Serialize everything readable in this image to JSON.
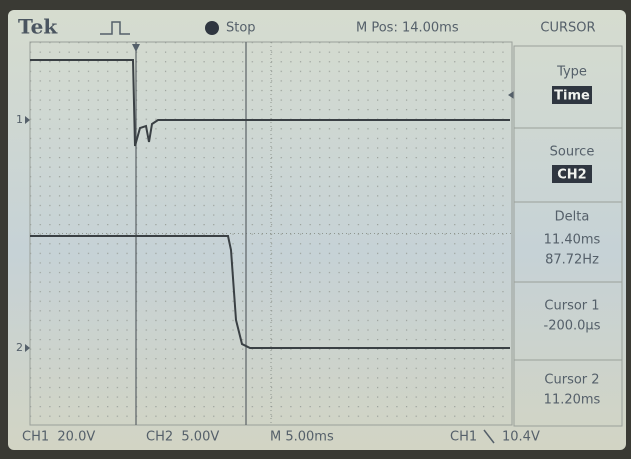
{
  "header": {
    "brand": "Tek",
    "run_state": "Stop",
    "position": "M Pos: 14.00ms",
    "menu_title": "CURSOR"
  },
  "menu": [
    {
      "label": "Type",
      "value": "Time"
    },
    {
      "label": "Source",
      "value": "CH2"
    },
    {
      "label": "Delta",
      "values": [
        "11.40ms",
        "87.72Hz"
      ]
    },
    {
      "label": "Cursor 1",
      "value": "-200.0µs"
    },
    {
      "label": "Cursor 2",
      "value": "11.20ms"
    }
  ],
  "channel_markers": [
    "1",
    "2"
  ],
  "footer": {
    "ch1": "CH1  20.0V",
    "ch2": "CH2  5.00V",
    "timebase": "M 5.00ms",
    "trigger_source": "CH1",
    "trigger_level": "10.4V"
  }
}
